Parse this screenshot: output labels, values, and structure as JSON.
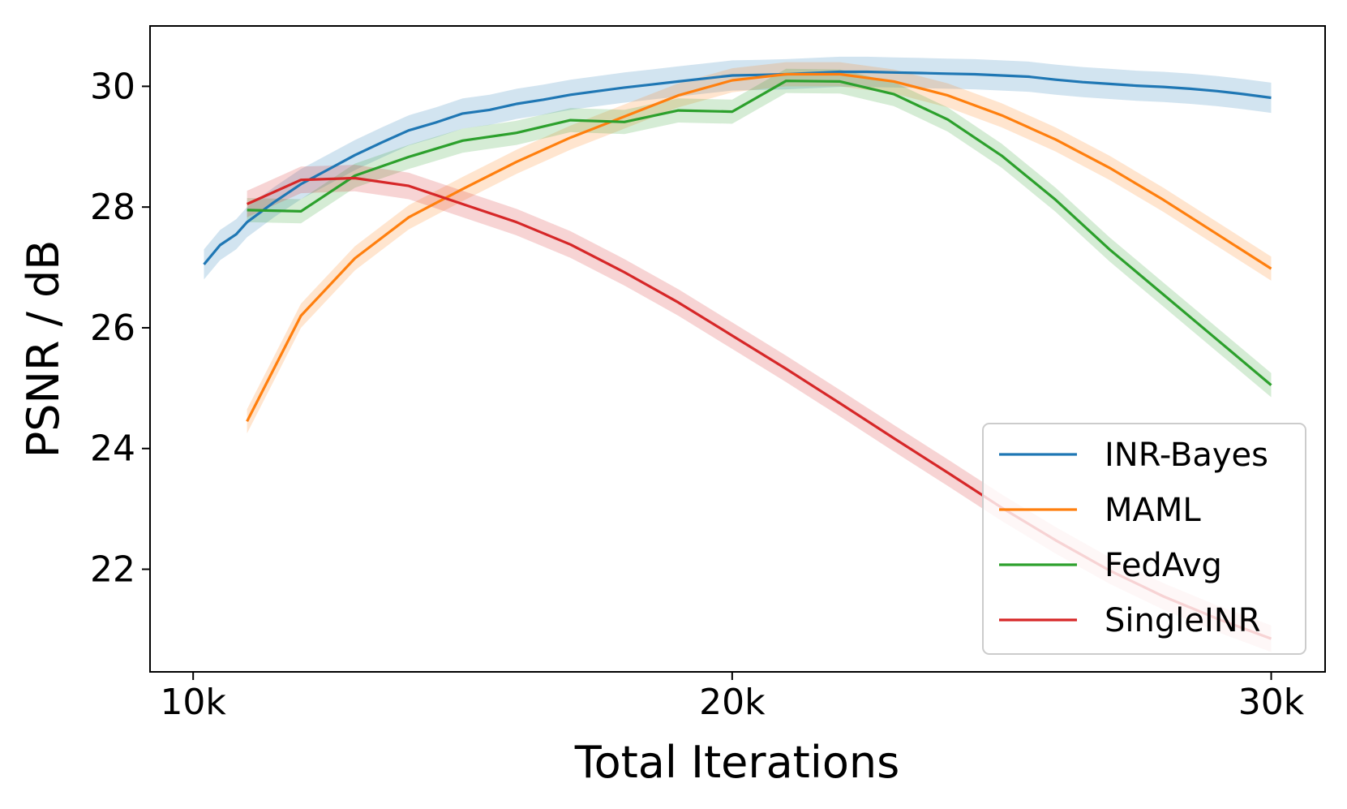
{
  "chart_data": {
    "type": "line",
    "title": "",
    "xlabel": "Total Iterations",
    "ylabel": "PSNR / dB",
    "xlim": [
      9200,
      31000
    ],
    "ylim": [
      20.3,
      31.0
    ],
    "xticks": [
      10000,
      20000,
      30000
    ],
    "xtick_labels": [
      "10k",
      "20k",
      "30k"
    ],
    "yticks": [
      22,
      24,
      26,
      28,
      30
    ],
    "ytick_labels": [
      "22",
      "24",
      "26",
      "28",
      "30"
    ],
    "grid": false,
    "legend_position": "bottom-right",
    "series": [
      {
        "name": "INR-Bayes",
        "color": "#1f77b4",
        "band": 0.25,
        "x": [
          10200,
          10500,
          10800,
          11000,
          11500,
          12000,
          12500,
          13000,
          13500,
          14000,
          14500,
          15000,
          15500,
          16000,
          16500,
          17000,
          17500,
          18000,
          18500,
          19000,
          19500,
          20000,
          20500,
          21000,
          21500,
          22000,
          22500,
          23000,
          23500,
          24000,
          24500,
          25000,
          25500,
          26000,
          26500,
          27000,
          27500,
          28000,
          28500,
          29000,
          29500,
          30000
        ],
        "y": [
          27.05,
          27.37,
          27.55,
          27.75,
          28.08,
          28.38,
          28.62,
          28.86,
          29.07,
          29.27,
          29.4,
          29.55,
          29.61,
          29.71,
          29.78,
          29.86,
          29.92,
          29.98,
          30.03,
          30.08,
          30.13,
          30.18,
          30.19,
          30.2,
          30.22,
          30.24,
          30.24,
          30.23,
          30.22,
          30.21,
          30.2,
          30.18,
          30.16,
          30.11,
          30.07,
          30.04,
          30.01,
          29.99,
          29.96,
          29.92,
          29.87,
          29.81
        ]
      },
      {
        "name": "MAML",
        "color": "#ff7f0e",
        "band": 0.2,
        "x": [
          11000,
          12000,
          13000,
          14000,
          15000,
          16000,
          17000,
          18000,
          19000,
          20000,
          21000,
          22000,
          23000,
          24000,
          25000,
          26000,
          27000,
          28000,
          29000,
          30000
        ],
        "y": [
          24.45,
          26.2,
          27.15,
          27.83,
          28.3,
          28.75,
          29.15,
          29.5,
          29.85,
          30.1,
          30.2,
          30.2,
          30.08,
          29.85,
          29.52,
          29.12,
          28.65,
          28.12,
          27.55,
          26.98
        ]
      },
      {
        "name": "FedAvg",
        "color": "#2ca02c",
        "band": 0.2,
        "x": [
          11000,
          12000,
          13000,
          14000,
          15000,
          16000,
          17000,
          18000,
          19000,
          20000,
          21000,
          22000,
          23000,
          24000,
          25000,
          26000,
          27000,
          28000,
          29000,
          30000
        ],
        "y": [
          27.95,
          27.93,
          28.52,
          28.83,
          29.1,
          29.23,
          29.44,
          29.41,
          29.6,
          29.58,
          30.09,
          30.08,
          29.87,
          29.45,
          28.85,
          28.12,
          27.3,
          26.55,
          25.8,
          25.05
        ]
      },
      {
        "name": "SingleINR",
        "color": "#d62728",
        "band": 0.22,
        "x": [
          11000,
          12000,
          13000,
          14000,
          15000,
          16000,
          17000,
          18000,
          19000,
          20000,
          21000,
          22000,
          23000,
          24000,
          25000,
          26000,
          27000,
          28000,
          29000,
          30000
        ],
        "y": [
          28.05,
          28.45,
          28.48,
          28.35,
          28.05,
          27.75,
          27.38,
          26.92,
          26.42,
          25.87,
          25.32,
          24.75,
          24.17,
          23.6,
          23.02,
          22.48,
          21.98,
          21.55,
          21.18,
          20.85
        ]
      }
    ]
  }
}
